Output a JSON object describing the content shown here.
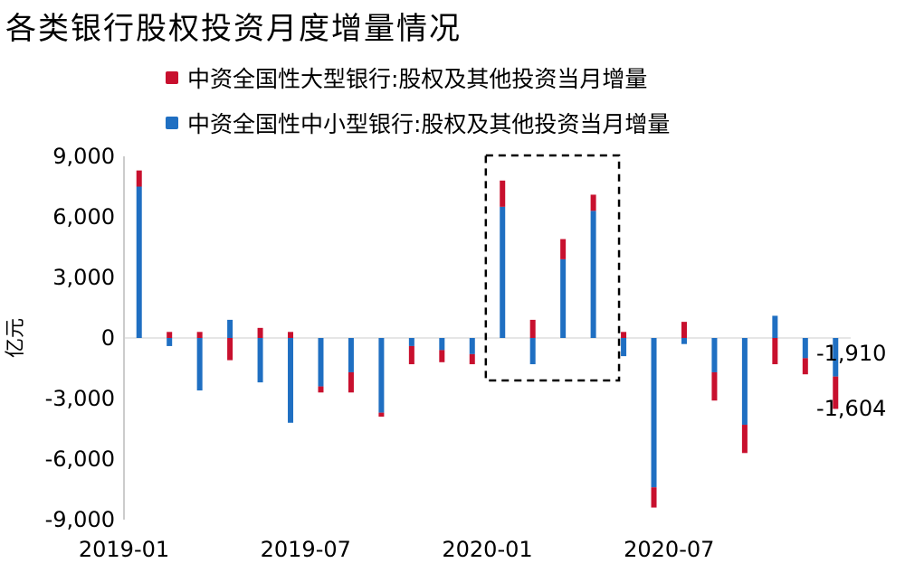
{
  "title": "各类银行股权投资月度增量情况",
  "colors": {
    "large": "#c8102e",
    "small": "#1f6fc2",
    "axis": "#999999"
  },
  "chart_data": {
    "type": "bar",
    "stacked": true,
    "ylabel": "亿元",
    "ylim": [
      -9000,
      9000
    ],
    "yticks": [
      9000,
      6000,
      3000,
      0,
      -3000,
      -6000,
      -9000
    ],
    "ytick_labels": [
      "9,000",
      "6,000",
      "3,000",
      "0",
      "-3,000",
      "-6,000",
      "-9,000"
    ],
    "x_tick_labels": [
      {
        "index": 0,
        "label": "2019-01"
      },
      {
        "index": 6,
        "label": "2019-07"
      },
      {
        "index": 12,
        "label": "2020-01"
      },
      {
        "index": 18,
        "label": "2020-07"
      }
    ],
    "categories": [
      "2019-01",
      "2019-02",
      "2019-03",
      "2019-04",
      "2019-05",
      "2019-06",
      "2019-07",
      "2019-08",
      "2019-09",
      "2019-10",
      "2019-11",
      "2019-12",
      "2020-01",
      "2020-02",
      "2020-03",
      "2020-04",
      "2020-05",
      "2020-06",
      "2020-07",
      "2020-08",
      "2020-09",
      "2020-10",
      "2020-11",
      "2020-12"
    ],
    "series": [
      {
        "name": "中资全国性大型银行:股权及其他投资当月增量",
        "values": [
          800,
          300,
          300,
          -1100,
          500,
          300,
          -300,
          -1000,
          -200,
          -900,
          -600,
          -500,
          1300,
          900,
          1000,
          800,
          300,
          -1000,
          800,
          -1400,
          -1400,
          -1300,
          -800,
          -1604
        ]
      },
      {
        "name": "中资全国性中小型银行:股权及其他投资当月增量",
        "values": [
          7500,
          -400,
          -2600,
          900,
          -2200,
          -4200,
          -2400,
          -1700,
          -3700,
          -400,
          -600,
          -800,
          6500,
          -1300,
          3900,
          6300,
          -900,
          -7400,
          -300,
          -1700,
          -4300,
          1100,
          -1000,
          -1910
        ]
      }
    ],
    "annotations": [
      {
        "text": "-1,910"
      },
      {
        "text": "-1,604"
      }
    ],
    "highlight_range": [
      "2020-01",
      "2020-04"
    ]
  }
}
